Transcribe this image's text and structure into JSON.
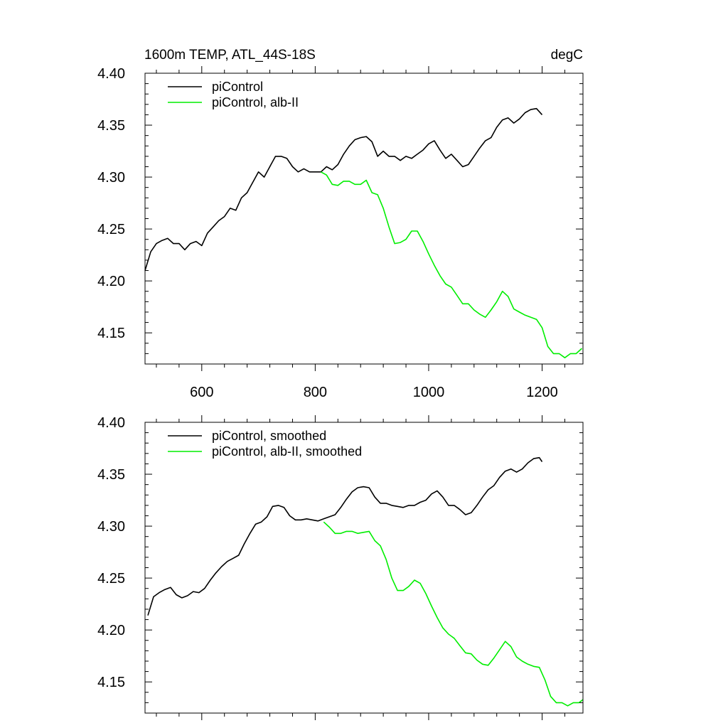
{
  "chart_data": [
    {
      "type": "line",
      "title_left": "1600m TEMP, ATL_44S-18S",
      "title_right": "degC",
      "xlabel": "",
      "ylabel": "",
      "xlim": [
        500,
        1272
      ],
      "ylim": [
        4.12,
        4.4
      ],
      "xticks": [
        600,
        800,
        1000,
        1200
      ],
      "xtick_labels": [
        "600",
        "800",
        "1000",
        "1200"
      ],
      "yticks": [
        4.15,
        4.2,
        4.25,
        4.3,
        4.35,
        4.4
      ],
      "ytick_labels": [
        "4.15",
        "4.20",
        "4.25",
        "4.30",
        "4.35",
        "4.40"
      ],
      "legend": [
        "piControl",
        "piControl, alb-II"
      ],
      "series": [
        {
          "name": "piControl",
          "color": "#000000",
          "x": [
            500,
            510,
            520,
            530,
            540,
            550,
            560,
            570,
            580,
            590,
            600,
            610,
            620,
            630,
            640,
            650,
            660,
            670,
            680,
            690,
            700,
            710,
            720,
            730,
            740,
            750,
            760,
            770,
            780,
            790,
            800,
            810,
            820,
            830,
            840,
            850,
            860,
            870,
            880,
            890,
            900,
            910,
            920,
            930,
            940,
            950,
            960,
            970,
            980,
            990,
            1000,
            1010,
            1020,
            1030,
            1040,
            1050,
            1060,
            1070,
            1080,
            1090,
            1100,
            1110,
            1120,
            1130,
            1140,
            1150,
            1160,
            1170,
            1180,
            1190,
            1200
          ],
          "values": [
            4.21,
            4.228,
            4.236,
            4.239,
            4.241,
            4.236,
            4.236,
            4.23,
            4.236,
            4.238,
            4.234,
            4.246,
            4.252,
            4.258,
            4.262,
            4.27,
            4.268,
            4.28,
            4.285,
            4.295,
            4.305,
            4.3,
            4.31,
            4.32,
            4.32,
            4.318,
            4.31,
            4.305,
            4.308,
            4.305,
            4.305,
            4.305,
            4.31,
            4.307,
            4.312,
            4.322,
            4.33,
            4.336,
            4.338,
            4.339,
            4.334,
            4.32,
            4.325,
            4.32,
            4.32,
            4.316,
            4.32,
            4.318,
            4.322,
            4.326,
            4.332,
            4.335,
            4.326,
            4.318,
            4.322,
            4.316,
            4.31,
            4.312,
            4.32,
            4.328,
            4.335,
            4.338,
            4.348,
            4.355,
            4.357,
            4.352,
            4.356,
            4.362,
            4.365,
            4.366,
            4.36
          ]
        },
        {
          "name": "piControl, alb-II",
          "color": "#00ee00",
          "x": [
            810,
            820,
            830,
            840,
            850,
            860,
            870,
            880,
            890,
            900,
            910,
            920,
            930,
            940,
            950,
            960,
            970,
            980,
            990,
            1000,
            1010,
            1020,
            1030,
            1040,
            1050,
            1060,
            1070,
            1080,
            1090,
            1100,
            1110,
            1120,
            1130,
            1140,
            1150,
            1160,
            1170,
            1180,
            1190,
            1200,
            1210,
            1220,
            1230,
            1240,
            1250,
            1260,
            1270
          ],
          "values": [
            4.305,
            4.302,
            4.293,
            4.292,
            4.296,
            4.296,
            4.293,
            4.293,
            4.297,
            4.285,
            4.283,
            4.27,
            4.252,
            4.236,
            4.237,
            4.24,
            4.248,
            4.248,
            4.238,
            4.226,
            4.215,
            4.205,
            4.197,
            4.194,
            4.186,
            4.178,
            4.178,
            4.172,
            4.168,
            4.165,
            4.172,
            4.18,
            4.19,
            4.185,
            4.173,
            4.17,
            4.167,
            4.165,
            4.163,
            4.155,
            4.137,
            4.13,
            4.13,
            4.126,
            4.13,
            4.13,
            4.135
          ]
        }
      ]
    },
    {
      "type": "line",
      "xlabel": "",
      "ylabel": "",
      "xlim": [
        500,
        1272
      ],
      "ylim": [
        4.12,
        4.4
      ],
      "xticks": [
        600,
        800,
        1000,
        1200
      ],
      "yticks": [
        4.15,
        4.2,
        4.25,
        4.3,
        4.35,
        4.4
      ],
      "ytick_labels": [
        "4.15",
        "4.20",
        "4.25",
        "4.30",
        "4.35",
        "4.40"
      ],
      "legend": [
        "piControl, smoothed",
        "piControl, alb-II, smoothed"
      ],
      "series": [
        {
          "name": "piControl, smoothed",
          "color": "#000000",
          "x": [
            505,
            515,
            525,
            535,
            545,
            555,
            565,
            575,
            585,
            595,
            605,
            615,
            625,
            635,
            645,
            655,
            665,
            675,
            685,
            695,
            705,
            715,
            725,
            735,
            745,
            755,
            765,
            775,
            785,
            795,
            805,
            815,
            825,
            835,
            845,
            855,
            865,
            875,
            885,
            895,
            905,
            915,
            925,
            935,
            945,
            955,
            965,
            975,
            985,
            995,
            1005,
            1015,
            1025,
            1035,
            1045,
            1055,
            1065,
            1075,
            1085,
            1095,
            1105,
            1115,
            1125,
            1135,
            1145,
            1155,
            1165,
            1175,
            1185,
            1195,
            1200
          ],
          "values": [
            4.214,
            4.232,
            4.236,
            4.239,
            4.241,
            4.234,
            4.231,
            4.233,
            4.237,
            4.236,
            4.24,
            4.248,
            4.255,
            4.261,
            4.266,
            4.269,
            4.272,
            4.283,
            4.293,
            4.302,
            4.304,
            4.309,
            4.319,
            4.32,
            4.318,
            4.31,
            4.306,
            4.306,
            4.307,
            4.306,
            4.305,
            4.307,
            4.309,
            4.311,
            4.318,
            4.326,
            4.333,
            4.337,
            4.338,
            4.337,
            4.328,
            4.322,
            4.322,
            4.32,
            4.319,
            4.318,
            4.32,
            4.32,
            4.323,
            4.325,
            4.331,
            4.334,
            4.328,
            4.32,
            4.32,
            4.316,
            4.311,
            4.313,
            4.32,
            4.328,
            4.335,
            4.339,
            4.347,
            4.353,
            4.355,
            4.352,
            4.355,
            4.361,
            4.365,
            4.366,
            4.362
          ]
        },
        {
          "name": "piControl, alb-II, smoothed",
          "color": "#00ee00",
          "x": [
            815,
            825,
            835,
            845,
            855,
            865,
            875,
            885,
            895,
            905,
            915,
            925,
            935,
            945,
            955,
            965,
            975,
            985,
            995,
            1005,
            1015,
            1025,
            1035,
            1045,
            1055,
            1065,
            1075,
            1085,
            1095,
            1105,
            1115,
            1125,
            1135,
            1145,
            1155,
            1165,
            1175,
            1185,
            1195,
            1205,
            1215,
            1225,
            1235,
            1245,
            1255,
            1265,
            1272
          ],
          "values": [
            4.304,
            4.299,
            4.293,
            4.293,
            4.295,
            4.295,
            4.293,
            4.294,
            4.295,
            4.286,
            4.281,
            4.268,
            4.25,
            4.238,
            4.238,
            4.242,
            4.248,
            4.245,
            4.235,
            4.223,
            4.212,
            4.202,
            4.196,
            4.192,
            4.185,
            4.178,
            4.177,
            4.171,
            4.167,
            4.166,
            4.173,
            4.181,
            4.189,
            4.184,
            4.174,
            4.17,
            4.167,
            4.165,
            4.164,
            4.152,
            4.136,
            4.13,
            4.13,
            4.127,
            4.13,
            4.13,
            4.133
          ]
        }
      ]
    }
  ]
}
